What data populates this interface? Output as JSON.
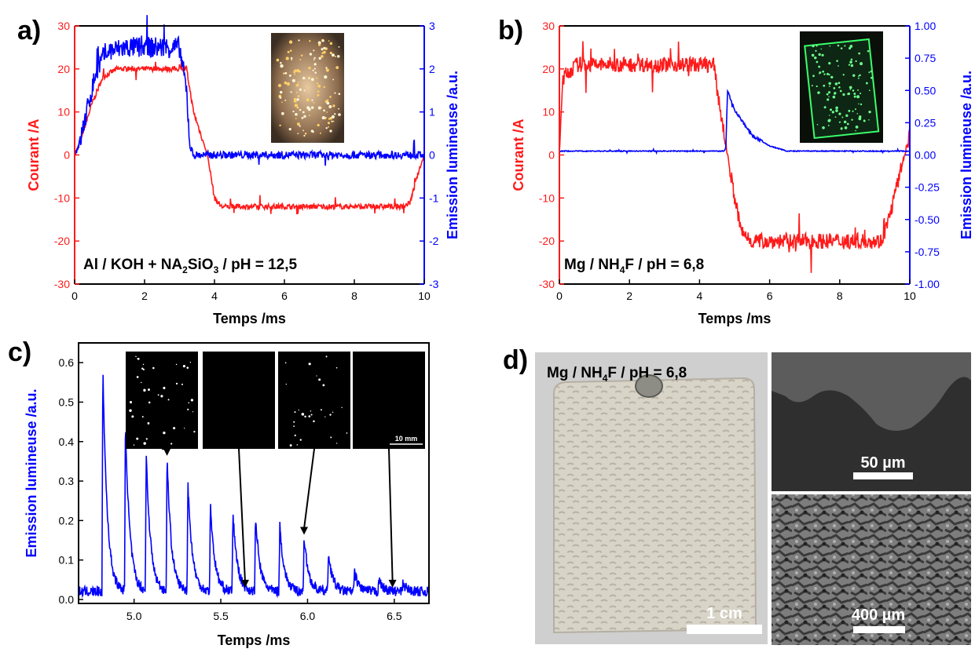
{
  "panels": {
    "a": {
      "letter": "a)",
      "annotation": {
        "pre": "Al / KOH + NA",
        "sub1": "2",
        "mid": "SiO",
        "sub2": "3",
        "post": " / pH = 12,5"
      }
    },
    "b": {
      "letter": "b)",
      "annotation": {
        "pre": "Mg / NH",
        "sub1": "4",
        "post": "F / pH = 6,8"
      }
    },
    "c": {
      "letter": "c)",
      "scalebar_label": "10 mm"
    },
    "d": {
      "letter": "d)",
      "annotation": {
        "pre": "Mg / NH",
        "sub1": "4",
        "post": "F / pH = 6,8"
      },
      "scale_photo": "1 cm",
      "scale_sem_top": "50 µm",
      "scale_sem_bottom": "400 µm"
    }
  },
  "colors": {
    "current": "#ff1a1a",
    "emission": "#0000ff",
    "axis": "#000000"
  },
  "chart_data": [
    {
      "id": "a",
      "type": "line",
      "xlabel": "Temps /ms",
      "ylabel_left": "Courant /A",
      "ylabel_right": "Emission lumineuse /a.u.",
      "xlim": [
        0,
        10
      ],
      "ylim_left": [
        -30,
        30
      ],
      "ylim_right": [
        -3,
        3
      ],
      "xticks": [
        0,
        2,
        4,
        6,
        8,
        10
      ],
      "yticks_left": [
        -30,
        -20,
        -10,
        0,
        10,
        20,
        30
      ],
      "yticks_right": [
        -3,
        -2,
        -1,
        0,
        1,
        2,
        3
      ],
      "series": [
        {
          "axis": "left",
          "color": "#ff1a1a",
          "noise": 0.6,
          "x": [
            0,
            0.15,
            0.5,
            0.8,
            1.2,
            2.8,
            3.2,
            3.4,
            3.8,
            4.0,
            4.2,
            6,
            8,
            9.4,
            9.6,
            9.8,
            10
          ],
          "y": [
            0,
            3,
            12,
            18,
            20,
            20,
            20,
            10,
            0,
            -10,
            -12,
            -12,
            -12,
            -12,
            -11,
            -5,
            0
          ]
        },
        {
          "axis": "right",
          "color": "#0000ff",
          "noise": 0.25,
          "x": [
            0,
            0.15,
            0.6,
            0.9,
            1.5,
            3.0,
            3.2,
            3.3,
            3.4,
            10
          ],
          "y": [
            0,
            0.3,
            1.9,
            2.4,
            2.5,
            2.5,
            1.5,
            0.2,
            0,
            0
          ]
        }
      ]
    },
    {
      "id": "b",
      "type": "line",
      "xlabel": "Temps /ms",
      "ylabel_left": "Courant /A",
      "ylabel_right": "Emission lumineuse /a.u.",
      "xlim": [
        0,
        10
      ],
      "ylim_left": [
        -30,
        30
      ],
      "ylim_right": [
        -1.0,
        1.0
      ],
      "xticks": [
        0,
        2,
        4,
        6,
        8,
        10
      ],
      "yticks_left": [
        -30,
        -20,
        -10,
        0,
        10,
        20,
        30
      ],
      "yticks_right": [
        -1.0,
        -0.75,
        -0.5,
        -0.25,
        0.0,
        0.25,
        0.5,
        0.75,
        1.0
      ],
      "yticklabels_right": [
        "-1.00",
        "-0.75",
        "-0.50",
        "-0.25",
        "0.00",
        "0.25",
        "0.50",
        "0.75",
        "1.00"
      ],
      "series": [
        {
          "axis": "left",
          "color": "#ff1a1a",
          "noise": 1.8,
          "x": [
            0,
            0.1,
            0.5,
            4.4,
            4.6,
            4.8,
            5.0,
            5.2,
            5.5,
            9.2,
            9.4,
            9.7,
            10
          ],
          "y": [
            0,
            18,
            21,
            21,
            10,
            0,
            -10,
            -18,
            -20,
            -20,
            -15,
            -5,
            5
          ]
        },
        {
          "axis": "right",
          "color": "#0000ff",
          "noise": 0.01,
          "x": [
            0,
            4.7,
            4.75,
            4.8,
            5.0,
            5.5,
            6.0,
            6.5,
            10
          ],
          "y": [
            0.03,
            0.03,
            0.05,
            0.5,
            0.35,
            0.15,
            0.07,
            0.03,
            0.03
          ]
        }
      ]
    },
    {
      "id": "c",
      "type": "line",
      "xlabel": "Temps /ms",
      "ylabel": "Emission lumineuse /a.u.",
      "xlim": [
        4.68,
        6.7
      ],
      "ylim": [
        -0.01,
        0.65
      ],
      "xticks": [
        5.0,
        5.5,
        6.0,
        6.5
      ],
      "xticklabels": [
        "5.0",
        "5.5",
        "6.0",
        "6.5"
      ],
      "yticks": [
        0.0,
        0.1,
        0.2,
        0.3,
        0.4,
        0.5,
        0.6
      ],
      "yticklabels": [
        "0.0",
        "0.1",
        "0.2",
        "0.3",
        "0.4",
        "0.5",
        "0.6"
      ],
      "baseline": 0.02,
      "peaks": [
        {
          "x": 4.82,
          "y": 0.59
        },
        {
          "x": 4.95,
          "y": 0.45
        },
        {
          "x": 5.07,
          "y": 0.37
        },
        {
          "x": 5.19,
          "y": 0.36
        },
        {
          "x": 5.31,
          "y": 0.3
        },
        {
          "x": 5.44,
          "y": 0.24
        },
        {
          "x": 5.57,
          "y": 0.22
        },
        {
          "x": 5.7,
          "y": 0.21
        },
        {
          "x": 5.84,
          "y": 0.19
        },
        {
          "x": 5.98,
          "y": 0.16
        },
        {
          "x": 6.12,
          "y": 0.12
        },
        {
          "x": 6.27,
          "y": 0.07
        },
        {
          "x": 6.41,
          "y": 0.05
        },
        {
          "x": 6.55,
          "y": 0.04
        }
      ],
      "arrows_to_x": [
        5.19,
        5.64,
        5.98,
        6.49
      ]
    }
  ]
}
